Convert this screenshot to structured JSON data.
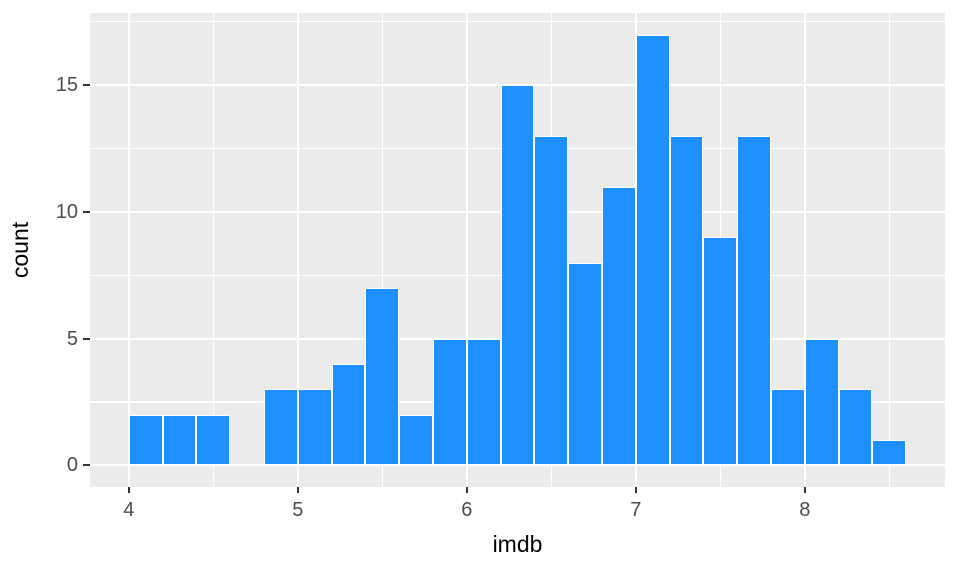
{
  "figure": {
    "background": "#FFFFFF"
  },
  "chart_data": {
    "type": "bar",
    "subtype": "histogram",
    "title": "",
    "xlabel": "imdb",
    "ylabel": "count",
    "bin_start": 4.0,
    "bin_width": 0.2,
    "counts": [
      2,
      2,
      2,
      0,
      3,
      3,
      4,
      7,
      2,
      5,
      5,
      15,
      13,
      8,
      11,
      17,
      13,
      9,
      13,
      3,
      5,
      3,
      1
    ],
    "x_ticks": [
      4,
      5,
      6,
      7,
      8
    ],
    "y_ticks": [
      0,
      5,
      10,
      15
    ],
    "x_minor_gridlines": [
      4.5,
      5.5,
      6.5,
      7.5,
      8.5
    ],
    "y_minor_gridlines": [
      2.5,
      7.5,
      12.5,
      17.5
    ],
    "xlim": [
      3.77,
      8.83
    ],
    "ylim": [
      -0.85,
      17.85
    ],
    "grid": true,
    "legend_position": "none",
    "colors": {
      "bar_fill": "#1E90FF",
      "bar_outline": "#FFFFFF",
      "panel_background": "#EBEBEB",
      "gridline": "#FFFFFF",
      "tick_label": "#4D4D4D",
      "tick_mark": "#333333",
      "axis_title": "#000000"
    }
  }
}
